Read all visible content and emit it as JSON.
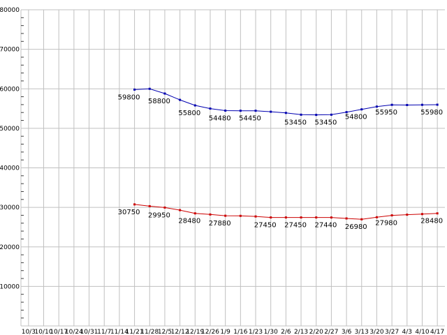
{
  "chart_data": {
    "type": "line",
    "title": "",
    "xlabel": "",
    "ylabel": "",
    "ylim": [
      0,
      80000
    ],
    "y_major_step": 10000,
    "y_minor_step": 2000,
    "y_tick_labels": [
      "10000",
      "20000",
      "30000",
      "40000",
      "50000",
      "60000",
      "70000",
      "80000"
    ],
    "grid": true,
    "legend": "none",
    "colors": {
      "grid": "#c0c0c0",
      "minor_tick": "#404040",
      "axis_text": "#000000",
      "series_blue": "#0000b0",
      "series_red": "#cc0000"
    },
    "x_labels": [
      "10/3",
      "10/10",
      "10/17",
      "10/24",
      "10/31",
      "11/7",
      "11/14",
      "11/21",
      "11/28",
      "12/5",
      "12/12",
      "12/19",
      "12/26",
      "1/9",
      "1/16",
      "1/23",
      "1/30",
      "2/6",
      "2/13",
      "2/20",
      "2/27",
      "3/6",
      "3/13",
      "3/20",
      "3/27",
      "4/3",
      "4/10",
      "4/17"
    ],
    "series": [
      {
        "name": "upper-blue-series",
        "color": "#0000b0",
        "marker": "square",
        "points": [
          {
            "x": "11/21",
            "value": 59800,
            "label": "59800"
          },
          {
            "x": "11/28",
            "value": 60000,
            "label": ""
          },
          {
            "x": "12/5",
            "value": 58800,
            "label": "58800"
          },
          {
            "x": "12/12",
            "value": 57200,
            "label": ""
          },
          {
            "x": "12/19",
            "value": 55800,
            "label": "55800"
          },
          {
            "x": "12/26",
            "value": 55000,
            "label": ""
          },
          {
            "x": "1/9",
            "value": 54480,
            "label": "54480"
          },
          {
            "x": "1/16",
            "value": 54450,
            "label": ""
          },
          {
            "x": "1/23",
            "value": 54450,
            "label": "54450"
          },
          {
            "x": "1/30",
            "value": 54200,
            "label": ""
          },
          {
            "x": "2/6",
            "value": 53900,
            "label": ""
          },
          {
            "x": "2/13",
            "value": 53450,
            "label": "53450"
          },
          {
            "x": "2/20",
            "value": 53400,
            "label": ""
          },
          {
            "x": "2/27",
            "value": 53450,
            "label": "53450"
          },
          {
            "x": "3/6",
            "value": 54100,
            "label": ""
          },
          {
            "x": "3/13",
            "value": 54800,
            "label": "54800"
          },
          {
            "x": "3/20",
            "value": 55500,
            "label": ""
          },
          {
            "x": "3/27",
            "value": 55950,
            "label": "55950"
          },
          {
            "x": "4/3",
            "value": 55900,
            "label": ""
          },
          {
            "x": "4/10",
            "value": 55950,
            "label": ""
          },
          {
            "x": "4/17",
            "value": 55980,
            "label": "55980"
          }
        ]
      },
      {
        "name": "lower-red-series",
        "color": "#cc0000",
        "marker": "square",
        "points": [
          {
            "x": "11/21",
            "value": 30750,
            "label": "30750"
          },
          {
            "x": "11/28",
            "value": 30300,
            "label": ""
          },
          {
            "x": "12/5",
            "value": 29950,
            "label": "29950"
          },
          {
            "x": "12/12",
            "value": 29300,
            "label": ""
          },
          {
            "x": "12/19",
            "value": 28480,
            "label": "28480"
          },
          {
            "x": "12/26",
            "value": 28200,
            "label": ""
          },
          {
            "x": "1/9",
            "value": 27880,
            "label": "27880"
          },
          {
            "x": "1/16",
            "value": 27850,
            "label": ""
          },
          {
            "x": "1/23",
            "value": 27700,
            "label": ""
          },
          {
            "x": "1/30",
            "value": 27450,
            "label": "27450"
          },
          {
            "x": "2/6",
            "value": 27450,
            "label": ""
          },
          {
            "x": "2/13",
            "value": 27450,
            "label": "27450"
          },
          {
            "x": "2/20",
            "value": 27450,
            "label": ""
          },
          {
            "x": "2/27",
            "value": 27440,
            "label": "27440"
          },
          {
            "x": "3/6",
            "value": 27200,
            "label": ""
          },
          {
            "x": "3/13",
            "value": 26980,
            "label": "26980"
          },
          {
            "x": "3/20",
            "value": 27500,
            "label": ""
          },
          {
            "x": "3/27",
            "value": 27980,
            "label": "27980"
          },
          {
            "x": "4/3",
            "value": 28150,
            "label": ""
          },
          {
            "x": "4/10",
            "value": 28300,
            "label": ""
          },
          {
            "x": "4/17",
            "value": 28480,
            "label": "28480"
          }
        ]
      }
    ]
  }
}
